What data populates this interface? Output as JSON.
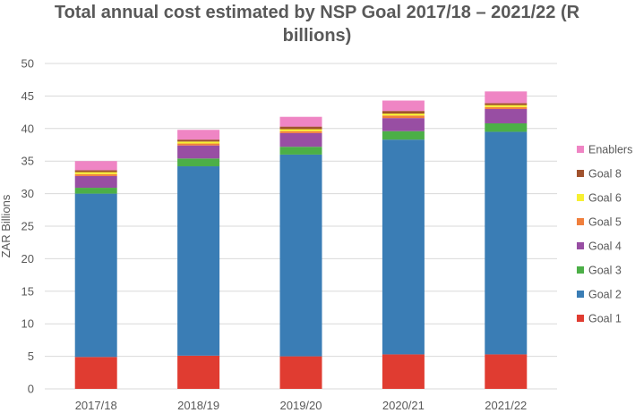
{
  "chart_data": {
    "type": "bar",
    "stacked": true,
    "title_lines": [
      "Total annual cost estimated by NSP Goal 2017/18 – 2021/22 (R",
      "billions)"
    ],
    "xlabel": "",
    "ylabel": "ZAR Billions",
    "ylim": [
      0,
      50
    ],
    "yticks": [
      0,
      5,
      10,
      15,
      20,
      25,
      30,
      35,
      40,
      45,
      50
    ],
    "grid": true,
    "legend_position": "right",
    "categories": [
      "2017/18",
      "2018/19",
      "2019/20",
      "2020/21",
      "2021/22"
    ],
    "series": [
      {
        "name": "Goal 1",
        "color": "#e03c31",
        "values": [
          4.9,
          5.1,
          5.0,
          5.3,
          5.3
        ]
      },
      {
        "name": "Goal 2",
        "color": "#3a7db5",
        "values": [
          25.1,
          29.1,
          31.0,
          33.0,
          34.2
        ]
      },
      {
        "name": "Goal 3",
        "color": "#4caf47",
        "values": [
          0.9,
          1.2,
          1.2,
          1.3,
          1.3
        ]
      },
      {
        "name": "Goal 4",
        "color": "#984ea3",
        "values": [
          1.8,
          2.0,
          2.1,
          2.0,
          2.2
        ]
      },
      {
        "name": "Goal 5",
        "color": "#f07f3c",
        "values": [
          0.3,
          0.3,
          0.3,
          0.4,
          0.3
        ]
      },
      {
        "name": "Goal 6",
        "color": "#f7f032",
        "values": [
          0.3,
          0.3,
          0.3,
          0.3,
          0.3
        ]
      },
      {
        "name": "Goal 8",
        "color": "#a0522d",
        "values": [
          0.3,
          0.3,
          0.4,
          0.4,
          0.3
        ]
      },
      {
        "name": "Enablers",
        "color": "#ef85c4",
        "values": [
          1.4,
          1.5,
          1.5,
          1.6,
          1.8
        ]
      }
    ]
  }
}
